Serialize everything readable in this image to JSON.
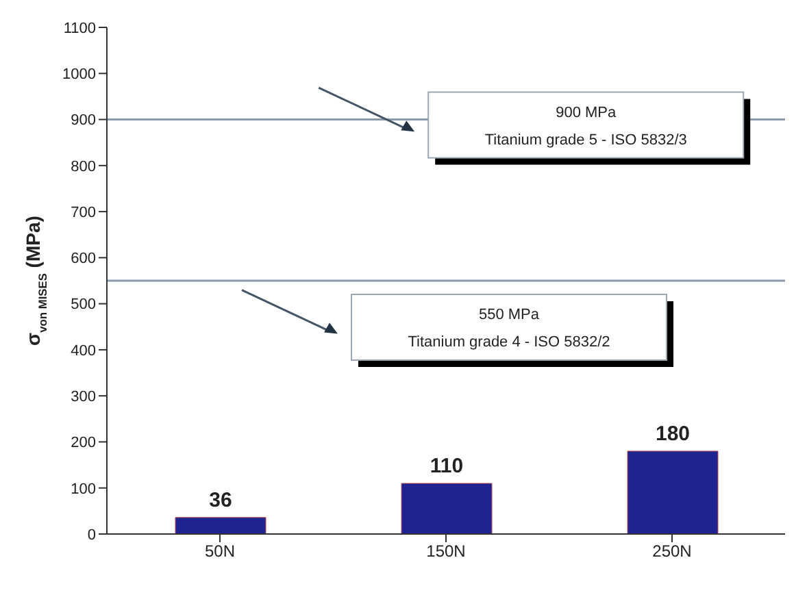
{
  "chart_data": {
    "type": "bar",
    "ylabel": "σ$_{von MISES}$ (MPa)",
    "categories": [
      "50N",
      "150N",
      "250N"
    ],
    "values": [
      36,
      110,
      180
    ],
    "color": "#1f2291",
    "data_labels": true,
    "ylim": [
      0,
      1100
    ],
    "yticks": [
      0,
      100,
      200,
      300,
      400,
      500,
      600,
      700,
      800,
      900,
      1000,
      1100
    ],
    "grid": false,
    "legend": false,
    "ref_lines": [
      {
        "axis": "y",
        "value": 900,
        "label": "900 MPa\nTitanium grade 5 - ISO 5832/3",
        "color": "#8a9aa8"
      },
      {
        "axis": "y",
        "value": 550,
        "label": "550 MPa\nTitanium grade 4 - ISO 5832/2",
        "color": "#8a9aa8"
      }
    ]
  }
}
